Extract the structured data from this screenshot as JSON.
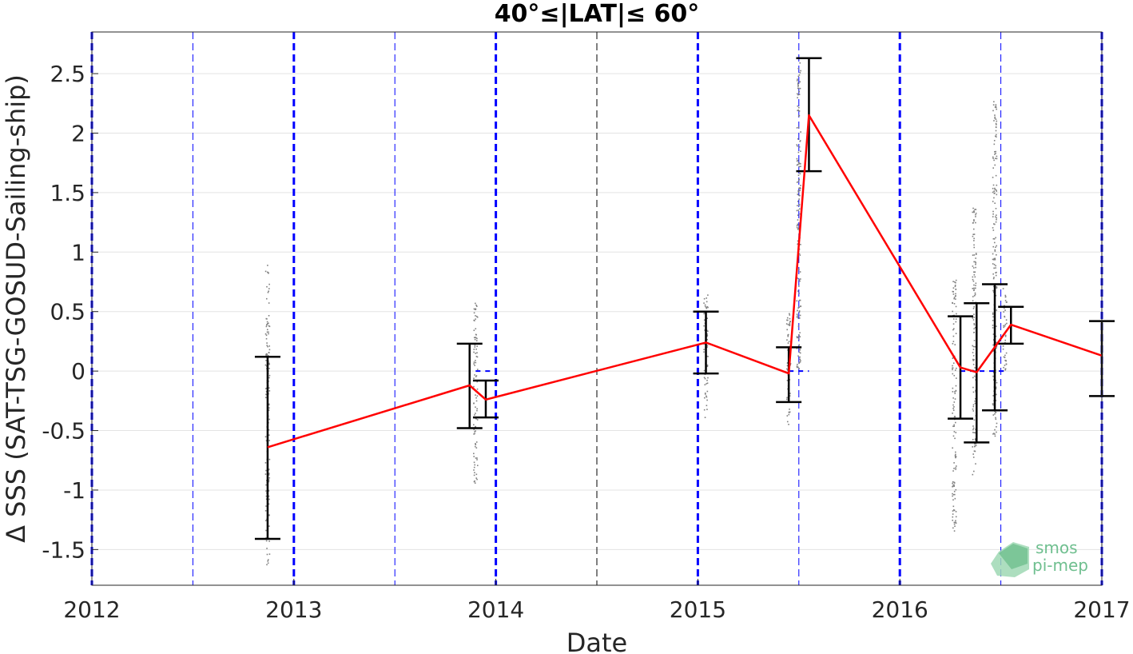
{
  "chart_data": {
    "type": "line",
    "title": "40°≤|LAT|≤ 60°",
    "xlabel": "Date",
    "ylabel": "Δ SSS (SAT-TSG-GOSUD-Sailing-ship)",
    "xlim": [
      2012,
      2017
    ],
    "ylim": [
      -1.8,
      2.85
    ],
    "x_ticks": [
      "2012",
      "2013",
      "2014",
      "2015",
      "2016",
      "2017"
    ],
    "y_ticks": [
      -1.5,
      -1,
      -0.5,
      0,
      0.5,
      1,
      1.5,
      2,
      2.5
    ],
    "y_tick_labels": [
      "-1.5",
      "-1",
      "-0.5",
      "0",
      "0.5",
      "1",
      "1.5",
      "2",
      "2.5"
    ],
    "grid": "horizontal",
    "series": [
      {
        "kind": "mean-line",
        "color": "#ff0000",
        "x": [
          2012.87,
          2013.87,
          2013.95,
          2015.04,
          2015.45,
          2015.55,
          2016.3,
          2016.38,
          2016.55,
          2017.0
        ],
        "y": [
          -0.64,
          -0.12,
          -0.24,
          0.24,
          -0.02,
          2.15,
          0.03,
          -0.01,
          0.39,
          0.13
        ]
      },
      {
        "kind": "error-bars",
        "color": "#000000",
        "x": [
          2012.87,
          2013.87,
          2013.95,
          2015.04,
          2015.45,
          2015.55,
          2016.3,
          2016.38,
          2016.47,
          2016.55,
          2017.0
        ],
        "low": [
          -1.41,
          -0.48,
          -0.39,
          -0.02,
          -0.26,
          1.68,
          -0.4,
          -0.6,
          -0.33,
          0.23,
          -0.21
        ],
        "high": [
          0.12,
          0.23,
          -0.08,
          0.5,
          0.2,
          2.63,
          0.46,
          0.57,
          0.73,
          0.54,
          0.42
        ]
      },
      {
        "kind": "individual-points",
        "color": "#808080",
        "clusters": [
          {
            "x": 2012.87,
            "min": -1.65,
            "max": 0.9
          },
          {
            "x": 2013.9,
            "min": -0.95,
            "max": 0.58
          },
          {
            "x": 2015.04,
            "min": -0.4,
            "max": 0.65
          },
          {
            "x": 2015.45,
            "min": -0.45,
            "max": 0.5
          },
          {
            "x": 2015.5,
            "min": 0.0,
            "max": 2.6
          },
          {
            "x": 2016.27,
            "min": -1.35,
            "max": 0.83
          },
          {
            "x": 2016.37,
            "min": -0.88,
            "max": 1.37
          },
          {
            "x": 2016.47,
            "min": -0.58,
            "max": 2.3
          },
          {
            "x": 2016.52,
            "min": 0.0,
            "max": 0.7
          }
        ]
      },
      {
        "kind": "zero-reference-segments",
        "color": "#0000ff",
        "ranges": [
          [
            2013.9,
            2013.98
          ],
          [
            2015.45,
            2015.55
          ],
          [
            2016.3,
            2016.52
          ]
        ]
      }
    ],
    "vertical_lines": {
      "year": {
        "x": [
          2012,
          2013,
          2014,
          2015,
          2016,
          2017
        ],
        "color": "#0000ff",
        "style": "dashed-thick"
      },
      "half_year": {
        "x": [
          2012.5,
          2013.5,
          2015.5,
          2016.5
        ],
        "color": "#0000ff",
        "style": "dashed-thin"
      },
      "half_year_black": {
        "x": [
          2014.5
        ],
        "color": "#000000",
        "style": "dashed-thin"
      }
    }
  },
  "logo": {
    "line1": "smos",
    "line2": "pi-mep"
  }
}
